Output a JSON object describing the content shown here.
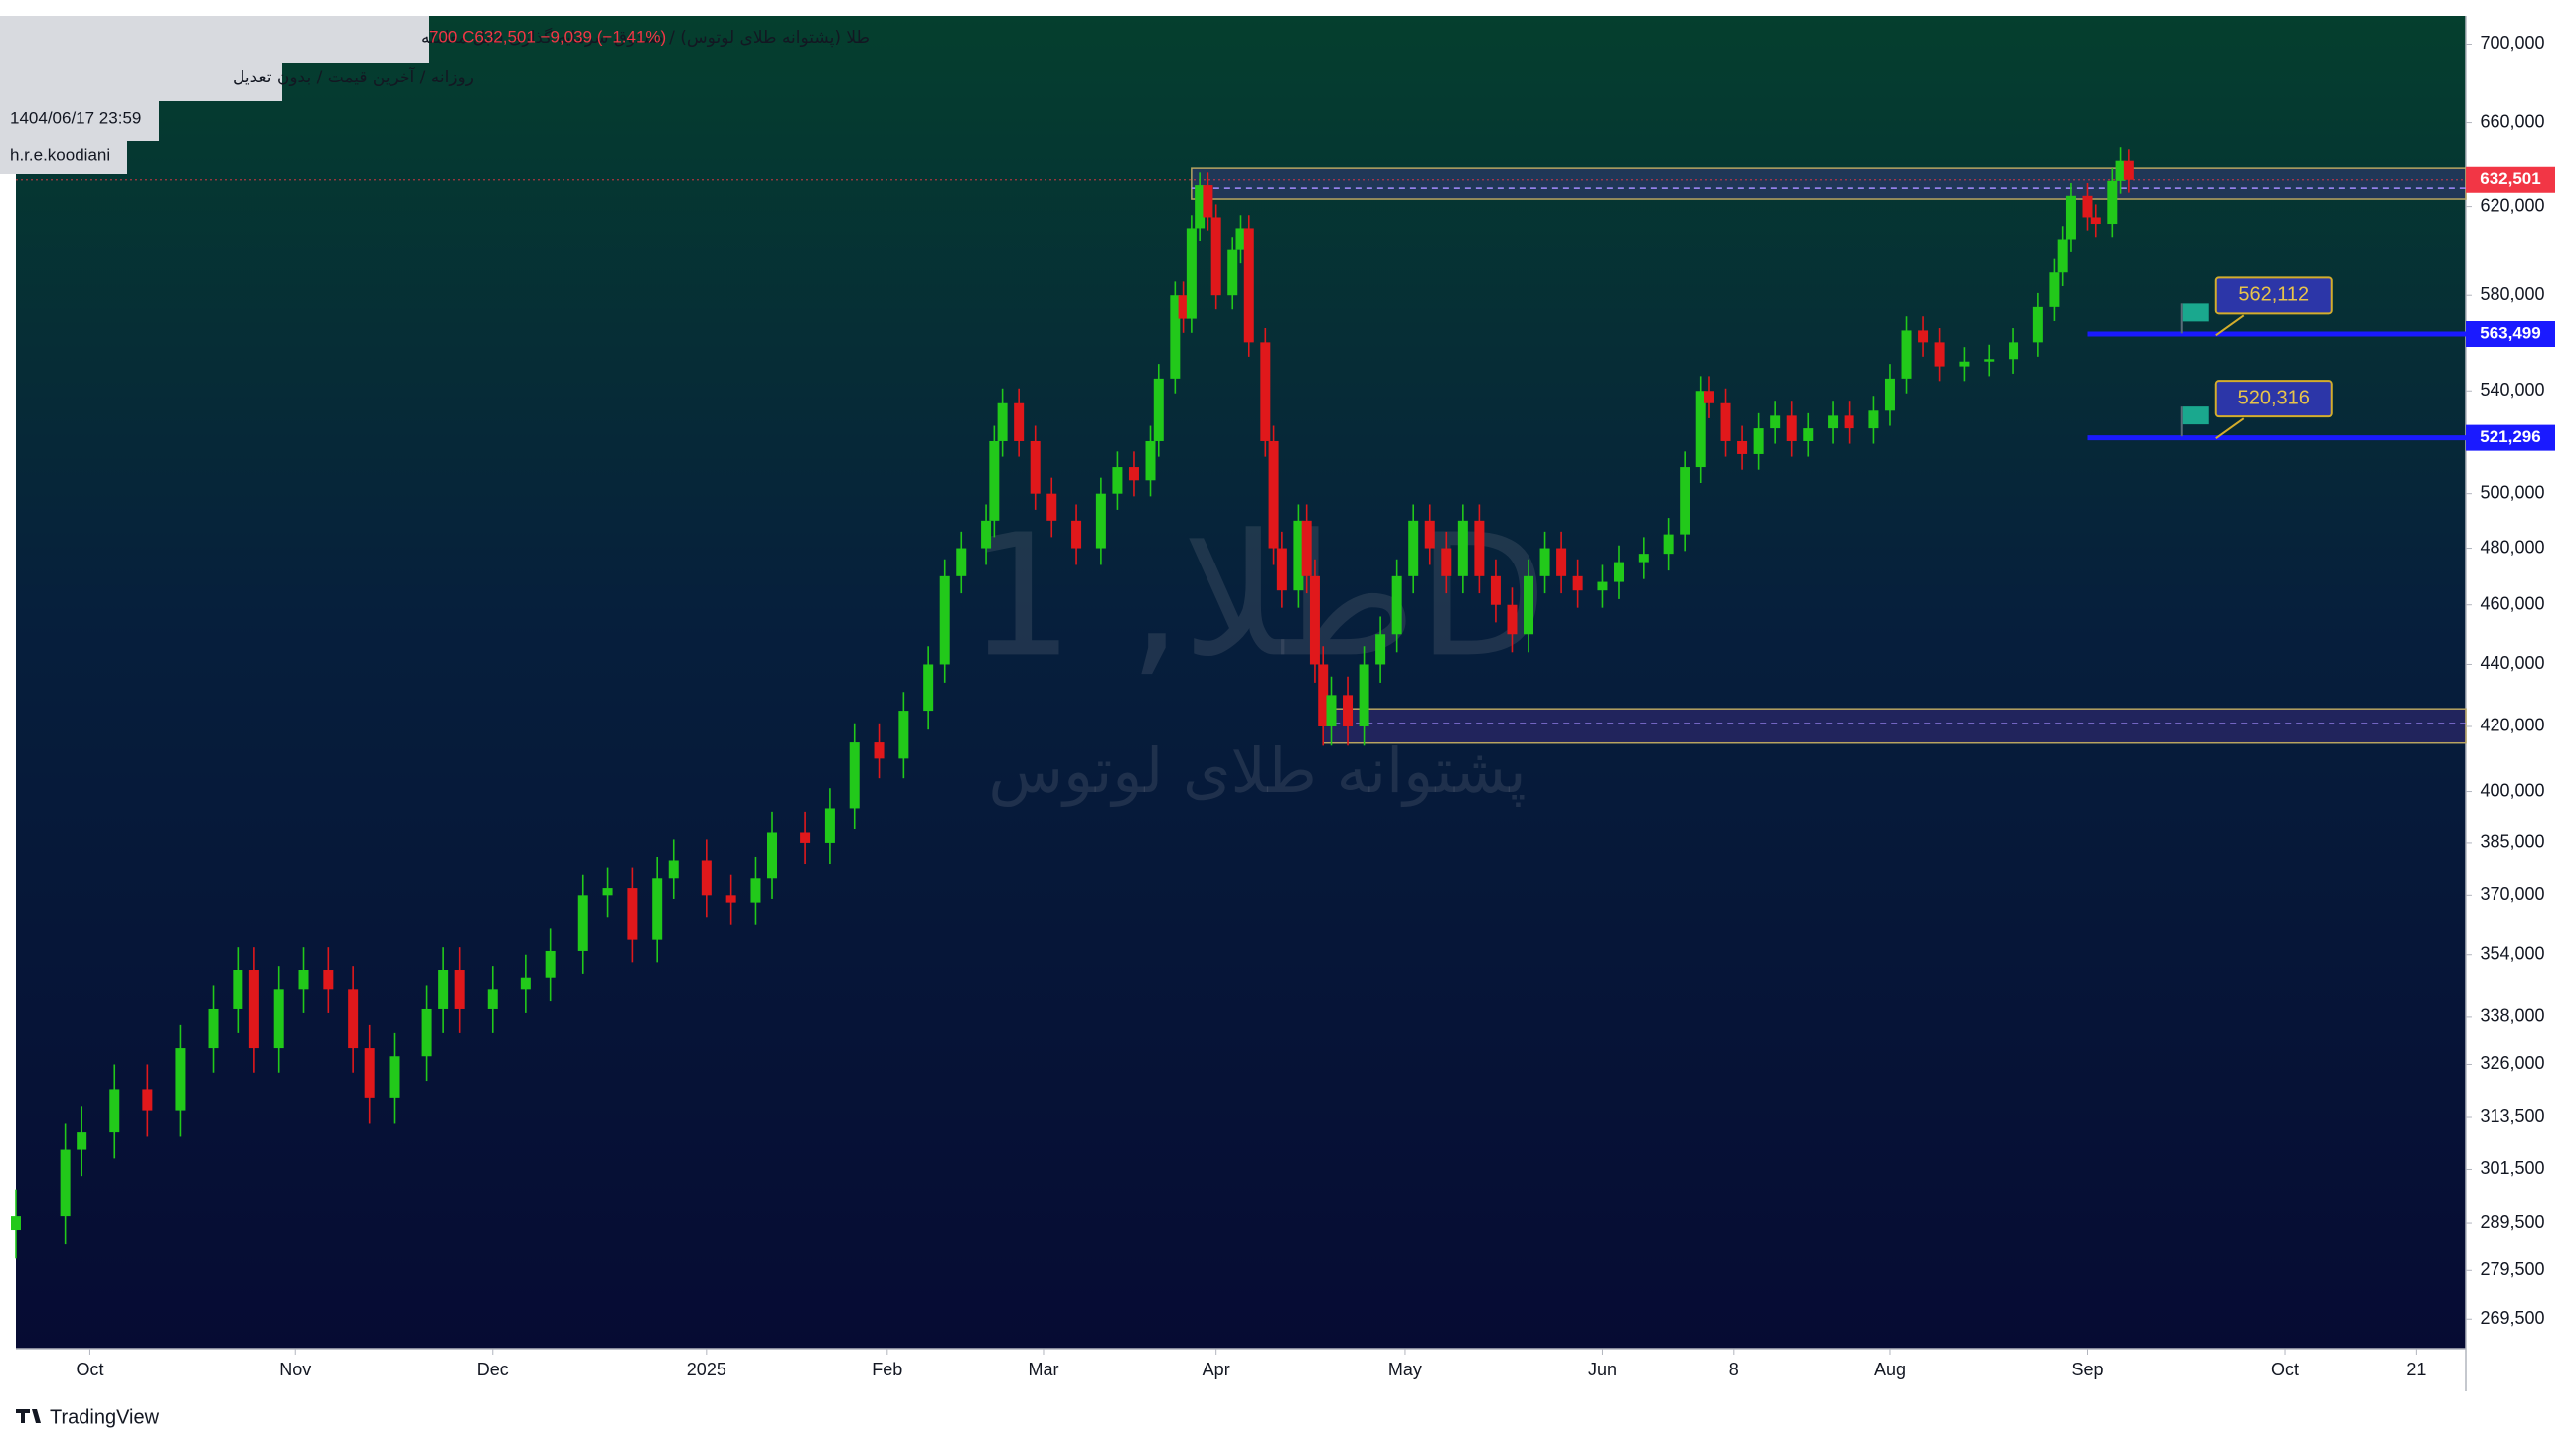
{
  "chart_data": {
    "type": "candlestick",
    "legend_title": "طلا (پشتوانه طلای لوتوس) / صندوق سرمایه گذاری قابل معامله",
    "ohlc_text": "700 C632,501 −9,039 (−1.41%)",
    "info_lines": [
      "روزانه / آخرین قیمت / بدون تعدیل",
      "1404/06/17 23:59",
      "h.r.e.koodiani"
    ],
    "watermark": "طلا, 1D",
    "watermark_subtitle": "پشتوانه طلای لوتوس",
    "branding": "TradingView",
    "log_scale": true,
    "up_color": "#22c91a",
    "down_color": "#e0181b",
    "xlim": [
      0,
      298
    ],
    "ylim": [
      263600,
      715000
    ],
    "xticks": [
      {
        "value": 9,
        "label": "Oct"
      },
      {
        "value": 34,
        "label": "Nov"
      },
      {
        "value": 58,
        "label": "Dec"
      },
      {
        "value": 84,
        "label": "2025"
      },
      {
        "value": 106,
        "label": "Feb"
      },
      {
        "value": 125,
        "label": "Mar"
      },
      {
        "value": 146,
        "label": "Apr"
      },
      {
        "value": 169,
        "label": "May"
      },
      {
        "value": 193,
        "label": "Jun"
      },
      {
        "value": 209,
        "label": "8"
      },
      {
        "value": 228,
        "label": "Aug"
      },
      {
        "value": 252,
        "label": "Sep"
      },
      {
        "value": 276,
        "label": "Oct"
      },
      {
        "value": 292,
        "label": "21"
      }
    ],
    "yticks": [
      {
        "value": 269500,
        "label": "269,500"
      },
      {
        "value": 279500,
        "label": "279,500"
      },
      {
        "value": 289500,
        "label": "289,500"
      },
      {
        "value": 301500,
        "label": "301,500"
      },
      {
        "value": 313500,
        "label": "313,500"
      },
      {
        "value": 326000,
        "label": "326,000"
      },
      {
        "value": 338000,
        "label": "338,000"
      },
      {
        "value": 354000,
        "label": "354,000"
      },
      {
        "value": 370000,
        "label": "370,000"
      },
      {
        "value": 385000,
        "label": "385,000"
      },
      {
        "value": 400000,
        "label": "400,000"
      },
      {
        "value": 420000,
        "label": "420,000"
      },
      {
        "value": 440000,
        "label": "440,000"
      },
      {
        "value": 460000,
        "label": "460,000"
      },
      {
        "value": 480000,
        "label": "480,000"
      },
      {
        "value": 500000,
        "label": "500,000"
      },
      {
        "value": 540000,
        "label": "540,000"
      },
      {
        "value": 580000,
        "label": "580,000"
      },
      {
        "value": 620000,
        "label": "620,000"
      },
      {
        "value": 660000,
        "label": "660,000"
      },
      {
        "value": 700000,
        "label": "700,000"
      }
    ],
    "x": [
      0,
      6,
      8,
      12,
      16,
      20,
      24,
      27,
      29,
      32,
      35,
      38,
      41,
      43,
      46,
      50,
      52,
      54,
      58,
      62,
      65,
      69,
      72,
      75,
      78,
      80,
      84,
      87,
      90,
      92,
      96,
      99,
      102,
      105,
      108,
      111,
      113,
      115,
      118,
      119,
      120,
      122,
      124,
      126,
      129,
      132,
      134,
      136,
      138,
      139,
      141,
      142,
      143,
      144,
      145,
      146,
      148,
      149,
      150,
      152,
      153,
      154,
      156,
      157,
      158,
      159,
      160,
      162,
      164,
      166,
      168,
      170,
      172,
      174,
      176,
      178,
      180,
      182,
      184,
      186,
      188,
      190,
      193,
      195,
      198,
      201,
      203,
      205,
      206,
      208,
      210,
      212,
      214,
      216,
      218,
      221,
      223,
      226,
      228,
      230,
      232,
      234,
      237,
      240,
      243,
      246,
      248,
      249,
      250,
      252,
      253,
      255,
      256,
      257
    ],
    "open": [
      288000,
      291000,
      306000,
      310000,
      320000,
      315000,
      330000,
      340000,
      350000,
      330000,
      345000,
      350000,
      345000,
      330000,
      318000,
      328000,
      340000,
      350000,
      340000,
      345000,
      348000,
      355000,
      370000,
      372000,
      358000,
      375000,
      380000,
      370000,
      368000,
      375000,
      388000,
      385000,
      395000,
      415000,
      410000,
      425000,
      440000,
      470000,
      480000,
      490000,
      520000,
      535000,
      520000,
      500000,
      490000,
      480000,
      500000,
      510000,
      505000,
      520000,
      545000,
      580000,
      570000,
      610000,
      630000,
      615000,
      580000,
      600000,
      610000,
      560000,
      520000,
      480000,
      465000,
      490000,
      470000,
      440000,
      420000,
      430000,
      420000,
      440000,
      450000,
      470000,
      490000,
      480000,
      470000,
      490000,
      470000,
      460000,
      450000,
      470000,
      480000,
      470000,
      465000,
      468000,
      475000,
      478000,
      485000,
      510000,
      540000,
      535000,
      520000,
      515000,
      525000,
      530000,
      520000,
      525000,
      530000,
      525000,
      532000,
      545000,
      565000,
      560000,
      550000,
      552000,
      553000,
      560000,
      575000,
      590000,
      605000,
      625000,
      615000,
      612000,
      632000,
      641540
    ],
    "high": [
      297000,
      312000,
      316000,
      326000,
      326000,
      336000,
      346000,
      356000,
      356000,
      351000,
      356000,
      356000,
      351000,
      336000,
      334000,
      346000,
      356000,
      356000,
      351000,
      354000,
      361000,
      376000,
      378000,
      378000,
      381000,
      386000,
      386000,
      376000,
      381000,
      394000,
      394000,
      401000,
      421000,
      421000,
      431000,
      446000,
      476000,
      486000,
      496000,
      526000,
      541000,
      541000,
      526000,
      506000,
      496000,
      506000,
      516000,
      516000,
      526000,
      551000,
      586000,
      586000,
      616000,
      636000,
      636000,
      621000,
      606000,
      616000,
      616000,
      566000,
      526000,
      486000,
      496000,
      496000,
      476000,
      446000,
      436000,
      436000,
      446000,
      456000,
      476000,
      496000,
      496000,
      486000,
      496000,
      496000,
      476000,
      466000,
      476000,
      486000,
      486000,
      476000,
      474000,
      481000,
      484000,
      491000,
      516000,
      546000,
      546000,
      541000,
      526000,
      531000,
      536000,
      536000,
      531000,
      536000,
      536000,
      538000,
      551000,
      571000,
      571000,
      566000,
      558000,
      559000,
      566000,
      581000,
      596000,
      611000,
      631000,
      631000,
      621000,
      638000,
      648000,
      647000
    ],
    "low": [
      282000,
      285000,
      300000,
      304000,
      309000,
      309000,
      324000,
      334000,
      324000,
      324000,
      339000,
      339000,
      324000,
      312000,
      312000,
      322000,
      334000,
      334000,
      334000,
      339000,
      342000,
      349000,
      364000,
      352000,
      352000,
      369000,
      364000,
      362000,
      362000,
      369000,
      379000,
      379000,
      389000,
      404000,
      404000,
      419000,
      434000,
      464000,
      474000,
      484000,
      514000,
      514000,
      494000,
      484000,
      474000,
      474000,
      494000,
      499000,
      499000,
      514000,
      539000,
      564000,
      564000,
      604000,
      609000,
      574000,
      574000,
      594000,
      554000,
      514000,
      474000,
      459000,
      459000,
      464000,
      434000,
      414000,
      414000,
      414000,
      414000,
      434000,
      444000,
      464000,
      474000,
      464000,
      464000,
      464000,
      454000,
      444000,
      444000,
      464000,
      464000,
      459000,
      459000,
      462000,
      469000,
      472000,
      479000,
      504000,
      529000,
      514000,
      509000,
      509000,
      519000,
      514000,
      514000,
      519000,
      519000,
      519000,
      526000,
      539000,
      554000,
      544000,
      544000,
      546000,
      547000,
      554000,
      569000,
      584000,
      599000,
      609000,
      606000,
      606000,
      626000,
      626500
    ],
    "close": [
      291000,
      306000,
      310000,
      320000,
      315000,
      330000,
      340000,
      350000,
      330000,
      345000,
      350000,
      345000,
      330000,
      318000,
      328000,
      340000,
      350000,
      340000,
      345000,
      348000,
      355000,
      370000,
      372000,
      358000,
      375000,
      380000,
      370000,
      368000,
      375000,
      388000,
      385000,
      395000,
      415000,
      410000,
      425000,
      440000,
      470000,
      480000,
      490000,
      520000,
      535000,
      520000,
      500000,
      490000,
      480000,
      500000,
      510000,
      505000,
      520000,
      545000,
      580000,
      570000,
      610000,
      630000,
      615000,
      580000,
      600000,
      610000,
      560000,
      520000,
      480000,
      465000,
      490000,
      470000,
      440000,
      420000,
      430000,
      420000,
      440000,
      450000,
      470000,
      490000,
      480000,
      470000,
      490000,
      470000,
      460000,
      450000,
      470000,
      480000,
      470000,
      465000,
      468000,
      475000,
      478000,
      485000,
      510000,
      540000,
      535000,
      520000,
      515000,
      525000,
      530000,
      520000,
      525000,
      530000,
      525000,
      532000,
      545000,
      565000,
      560000,
      550000,
      552000,
      553000,
      560000,
      575000,
      590000,
      605000,
      625000,
      615000,
      612000,
      632000,
      641540,
      632501
    ],
    "last_price": {
      "value": 632501,
      "label": "632,501",
      "color": "#f23645"
    },
    "hlines": [
      {
        "value": 563499,
        "label": "563,499",
        "x_start": 252,
        "color": "#1a1aff"
      },
      {
        "value": 521296,
        "label": "521,296",
        "x_start": 252,
        "color": "#1a1aff"
      }
    ],
    "callouts": [
      {
        "value": 562112,
        "label": "562,112",
        "x": 264
      },
      {
        "value": 520316,
        "label": "520,316",
        "x": 264
      }
    ],
    "zones": [
      {
        "top": 638000,
        "bottom": 623500,
        "mid": 628600,
        "x_start": 143
      },
      {
        "top": 425600,
        "bottom": 414800,
        "mid": 420900,
        "x_start": 159
      }
    ]
  }
}
